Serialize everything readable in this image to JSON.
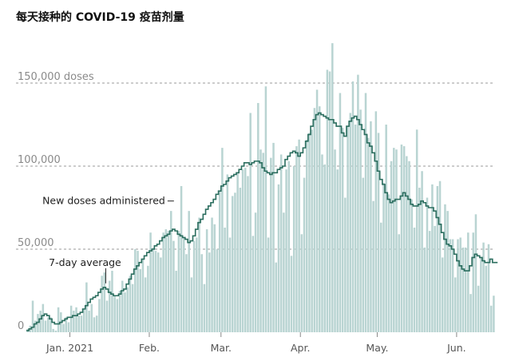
{
  "title": "每天接种的 COVID-19 疫苗剂量",
  "chart_data": {
    "type": "bar",
    "title": "每天接种的 COVID-19 疫苗剂量",
    "xlabel": "",
    "ylabel": "",
    "ylim": [
      0,
      175000
    ],
    "grid": true,
    "y_ticks": [
      {
        "value": 0,
        "label": "0"
      },
      {
        "value": 50000,
        "label": "50,000"
      },
      {
        "value": 100000,
        "label": "100,000"
      },
      {
        "value": 150000,
        "label": "150,000 doses"
      }
    ],
    "x_ticks": [
      {
        "day": 17,
        "label": "Jan. 2021"
      },
      {
        "day": 48,
        "label": "Feb."
      },
      {
        "day": 76,
        "label": "Mar."
      },
      {
        "day": 107,
        "label": "Apr."
      },
      {
        "day": 137,
        "label": "May."
      },
      {
        "day": 168,
        "label": "Jun."
      }
    ],
    "annotations": [
      {
        "text": "New doses administered",
        "day": 57,
        "value": 79000
      },
      {
        "text": "7-day average",
        "day": 31,
        "value": 40000
      }
    ],
    "series": [
      {
        "name": "New doses administered",
        "kind": "bar",
        "color": "#b9d4d2",
        "values": [
          2000,
          4000,
          19000,
          7000,
          11000,
          13000,
          17000,
          7000,
          9000,
          9000,
          2000,
          1000,
          15000,
          12000,
          5000,
          9000,
          6000,
          16000,
          13000,
          15000,
          10000,
          10000,
          14000,
          30000,
          13000,
          17000,
          9000,
          10000,
          20000,
          34000,
          36000,
          19000,
          31000,
          37000,
          22000,
          20000,
          25000,
          31000,
          24000,
          27000,
          34000,
          29000,
          50000,
          49000,
          38000,
          44000,
          33000,
          40000,
          60000,
          51000,
          49000,
          48000,
          45000,
          60000,
          62000,
          61000,
          73000,
          55000,
          37000,
          61000,
          88000,
          57000,
          47000,
          73000,
          33000,
          55000,
          57000,
          69000,
          47000,
          29000,
          62000,
          48000,
          69000,
          65000,
          50000,
          85000,
          111000,
          63000,
          95000,
          57000,
          82000,
          84000,
          96000,
          87000,
          98000,
          99000,
          94000,
          132000,
          58000,
          72000,
          138000,
          110000,
          108000,
          148000,
          57000,
          105000,
          114000,
          42000,
          89000,
          107000,
          72000,
          98000,
          103000,
          46000,
          100000,
          112000,
          116000,
          59000,
          93000,
          116000,
          120000,
          122000,
          135000,
          146000,
          136000,
          107000,
          101000,
          158000,
          157000,
          174000,
          110000,
          98000,
          144000,
          123000,
          81000,
          124000,
          132000,
          151000,
          125000,
          155000,
          134000,
          93000,
          144000,
          117000,
          127000,
          79000,
          133000,
          120000,
          66000,
          90000,
          125000,
          83000,
          103000,
          111000,
          110000,
          59000,
          113000,
          112000,
          106000,
          103000,
          80000,
          63000,
          122000,
          87000,
          97000,
          51000,
          81000,
          61000,
          89000,
          64000,
          88000,
          91000,
          45000,
          77000,
          73000,
          56000,
          56000,
          33000,
          56000,
          57000,
          51000,
          51000,
          60000,
          23000,
          60000,
          71000,
          28000,
          45000,
          54000,
          40000,
          53000,
          16000,
          22000
        ]
      },
      {
        "name": "7-day average",
        "kind": "step-line",
        "color": "#2a6d5e",
        "values": [
          1000,
          2000,
          3000,
          5000,
          6000,
          8000,
          10000,
          11000,
          10000,
          8000,
          6000,
          5000,
          5000,
          6000,
          7000,
          8000,
          9000,
          9000,
          10000,
          10000,
          11000,
          12000,
          14000,
          16000,
          18000,
          20000,
          21000,
          22000,
          24000,
          26000,
          27000,
          26000,
          24000,
          23000,
          22000,
          22000,
          23000,
          25000,
          26000,
          29000,
          32000,
          35000,
          38000,
          40000,
          42000,
          44000,
          46000,
          48000,
          49000,
          50000,
          52000,
          53000,
          55000,
          57000,
          58000,
          59000,
          61000,
          62000,
          61000,
          59000,
          58000,
          57000,
          56000,
          54000,
          55000,
          58000,
          62000,
          66000,
          68000,
          71000,
          74000,
          76000,
          78000,
          80000,
          83000,
          85000,
          88000,
          89000,
          91000,
          93000,
          94000,
          95000,
          96000,
          98000,
          100000,
          102000,
          102000,
          101000,
          102000,
          103000,
          103000,
          102000,
          99000,
          97000,
          96000,
          95000,
          96000,
          96000,
          98000,
          99000,
          100000,
          104000,
          106000,
          108000,
          109000,
          108000,
          106000,
          108000,
          111000,
          115000,
          119000,
          124000,
          128000,
          131000,
          132000,
          131000,
          130000,
          129000,
          128000,
          128000,
          126000,
          124000,
          124000,
          120000,
          118000,
          124000,
          127000,
          129000,
          130000,
          128000,
          125000,
          122000,
          119000,
          114000,
          112000,
          108000,
          103000,
          97000,
          92000,
          89000,
          84000,
          80000,
          78000,
          79000,
          80000,
          80000,
          82000,
          84000,
          82000,
          80000,
          77000,
          76000,
          76000,
          77000,
          79000,
          78000,
          76000,
          75000,
          75000,
          73000,
          69000,
          65000,
          60000,
          56000,
          53000,
          52000,
          50000,
          47000,
          43000,
          40000,
          38000,
          37000,
          37000,
          40000,
          45000,
          47000,
          46000,
          45000,
          43000,
          42000,
          42000,
          44000,
          42000,
          42000
        ]
      }
    ]
  }
}
